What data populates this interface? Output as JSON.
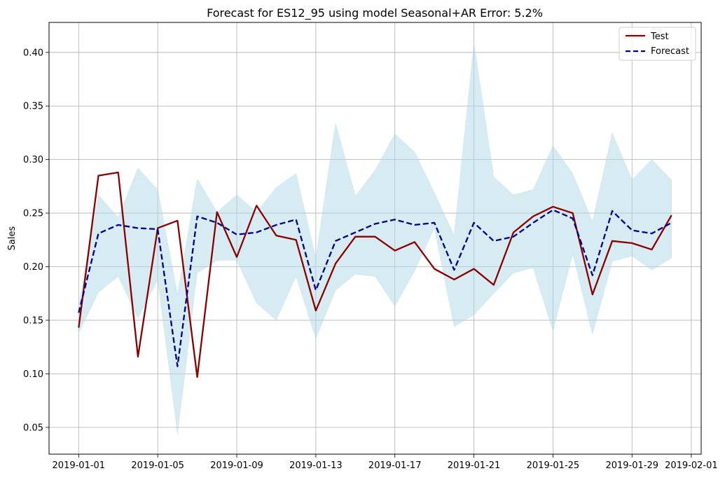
{
  "chart_data": {
    "type": "line",
    "title": "Forecast for ES12_95 using model Seasonal+AR Error: 5.2%",
    "xlabel": "",
    "ylabel": "Sales",
    "xlim": [
      "2018-12-30T12:00",
      "2019-02-01T12:00"
    ],
    "ylim": [
      0.025,
      0.428
    ],
    "x_ticks": [
      "2019-01-01",
      "2019-01-05",
      "2019-01-09",
      "2019-01-13",
      "2019-01-17",
      "2019-01-21",
      "2019-01-25",
      "2019-01-29",
      "2019-02-01"
    ],
    "y_ticks": [
      "0.05",
      "0.10",
      "0.15",
      "0.20",
      "0.25",
      "0.30",
      "0.35",
      "0.40"
    ],
    "grid": true,
    "legend_position": "top-right",
    "x": [
      "2019-01-01",
      "2019-01-02",
      "2019-01-03",
      "2019-01-04",
      "2019-01-05",
      "2019-01-06",
      "2019-01-07",
      "2019-01-08",
      "2019-01-09",
      "2019-01-10",
      "2019-01-11",
      "2019-01-12",
      "2019-01-13",
      "2019-01-14",
      "2019-01-15",
      "2019-01-16",
      "2019-01-17",
      "2019-01-18",
      "2019-01-19",
      "2019-01-20",
      "2019-01-21",
      "2019-01-22",
      "2019-01-23",
      "2019-01-24",
      "2019-01-25",
      "2019-01-26",
      "2019-01-27",
      "2019-01-28",
      "2019-01-29",
      "2019-01-30",
      "2019-01-31"
    ],
    "series": [
      {
        "name": "Test",
        "color": "#8b0000",
        "style": "solid",
        "values": [
          0.143,
          0.285,
          0.288,
          0.116,
          0.236,
          0.243,
          0.097,
          0.251,
          0.209,
          0.257,
          0.229,
          0.225,
          0.159,
          0.203,
          0.228,
          0.228,
          0.215,
          0.223,
          0.198,
          0.188,
          0.198,
          0.183,
          0.232,
          0.247,
          0.256,
          0.25,
          0.174,
          0.224,
          0.222,
          0.216,
          0.248
        ]
      },
      {
        "name": "Forecast",
        "color": "#00008b",
        "style": "dashed",
        "values": [
          0.157,
          0.231,
          0.239,
          0.236,
          0.235,
          0.107,
          0.247,
          0.241,
          0.23,
          0.232,
          0.239,
          0.244,
          0.178,
          0.224,
          0.232,
          0.24,
          0.244,
          0.239,
          0.241,
          0.197,
          0.241,
          0.224,
          0.228,
          0.241,
          0.253,
          0.245,
          0.192,
          0.252,
          0.234,
          0.231,
          0.241
        ]
      }
    ],
    "interval": {
      "color": "#add8e6",
      "lower": [
        0.138,
        0.176,
        0.191,
        0.152,
        0.188,
        0.044,
        0.194,
        0.206,
        0.206,
        0.166,
        0.15,
        0.191,
        0.133,
        0.178,
        0.193,
        0.191,
        0.163,
        0.196,
        0.236,
        0.144,
        0.155,
        0.175,
        0.194,
        0.199,
        0.14,
        0.212,
        0.137,
        0.205,
        0.21,
        0.197,
        0.208
      ],
      "upper": [
        0.163,
        0.267,
        0.246,
        0.292,
        0.272,
        0.174,
        0.282,
        0.251,
        0.267,
        0.251,
        0.274,
        0.287,
        0.208,
        0.334,
        0.266,
        0.29,
        0.324,
        0.307,
        0.269,
        0.229,
        0.409,
        0.284,
        0.267,
        0.272,
        0.313,
        0.287,
        0.242,
        0.325,
        0.281,
        0.3,
        0.281
      ]
    }
  }
}
